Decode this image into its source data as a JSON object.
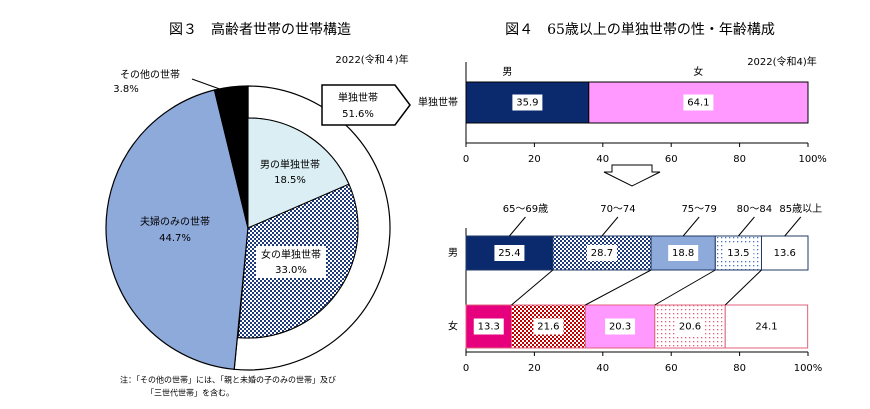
{
  "chart_data": [
    {
      "type": "pie",
      "title": "図３　高齢者世帯の世帯構造",
      "subtitle": "2022(令和４)年",
      "categories": [
        "単独世帯",
        "夫婦のみの世帯",
        "その他の世帯"
      ],
      "values": [
        51.6,
        44.7,
        3.8
      ],
      "value_labels": [
        "51.6%",
        "44.7%",
        "3.8%"
      ],
      "colors": [
        "#ffffff",
        "#8eaadb",
        "#000000"
      ],
      "inner": {
        "categories": [
          "男の単独世帯",
          "女の単独世帯"
        ],
        "values": [
          18.5,
          33.0
        ],
        "value_labels": [
          "18.5%",
          "33.0%"
        ],
        "colors": [
          "#dbeef4",
          "#1f3a7a"
        ],
        "patterns": [
          "solid",
          "crosshatch"
        ]
      },
      "note": [
        "注：「その他の世帯」には、「親と未婚の子のみの世帯」及び",
        "「三世代世帯」を含む。"
      ]
    },
    {
      "type": "bar",
      "title": "図４　65歳以上の単独世帯の性・年齢構成",
      "subtitle": "2022(令和4)年",
      "orientation": "horizontal",
      "stacked": true,
      "categories": [
        "単独世帯"
      ],
      "series": [
        {
          "name": "男",
          "color": "#0b2a6e",
          "values": [
            35.9
          ]
        },
        {
          "name": "女",
          "color": "#ff99ff",
          "values": [
            64.1
          ]
        }
      ],
      "xlim": [
        0,
        100
      ],
      "xticks": [
        0,
        20,
        40,
        60,
        80,
        100
      ],
      "x_unit": "%"
    },
    {
      "type": "bar",
      "orientation": "horizontal",
      "stacked": true,
      "categories": [
        "男",
        "女"
      ],
      "edge_colors": [
        "#1f3864",
        "#e0607e"
      ],
      "series": [
        {
          "name": "65～69歳",
          "colors": [
            "#0b2a6e",
            "#e6007e"
          ],
          "pattern": "solid",
          "values": [
            25.4,
            13.3
          ]
        },
        {
          "name": "70～74",
          "colors": [
            "#1f3a7a",
            "#c00000"
          ],
          "pattern": "crosshatch",
          "values": [
            28.7,
            21.6
          ]
        },
        {
          "name": "75～79",
          "colors": [
            "#8eaadb",
            "#ff99ff"
          ],
          "pattern": "solid",
          "values": [
            18.8,
            20.3
          ]
        },
        {
          "name": "80～84",
          "colors": [
            "#4472c4",
            "#e0607e"
          ],
          "pattern": "dots",
          "values": [
            13.5,
            20.6
          ]
        },
        {
          "name": "85歳以上",
          "colors": [
            "#ffffff",
            "#ffffff"
          ],
          "pattern": "solid",
          "values": [
            13.6,
            24.1
          ]
        }
      ],
      "xlim": [
        0,
        100
      ],
      "xticks": [
        0,
        20,
        40,
        60,
        80,
        {
          "value": 100,
          "label": "100%"
        }
      ]
    }
  ]
}
